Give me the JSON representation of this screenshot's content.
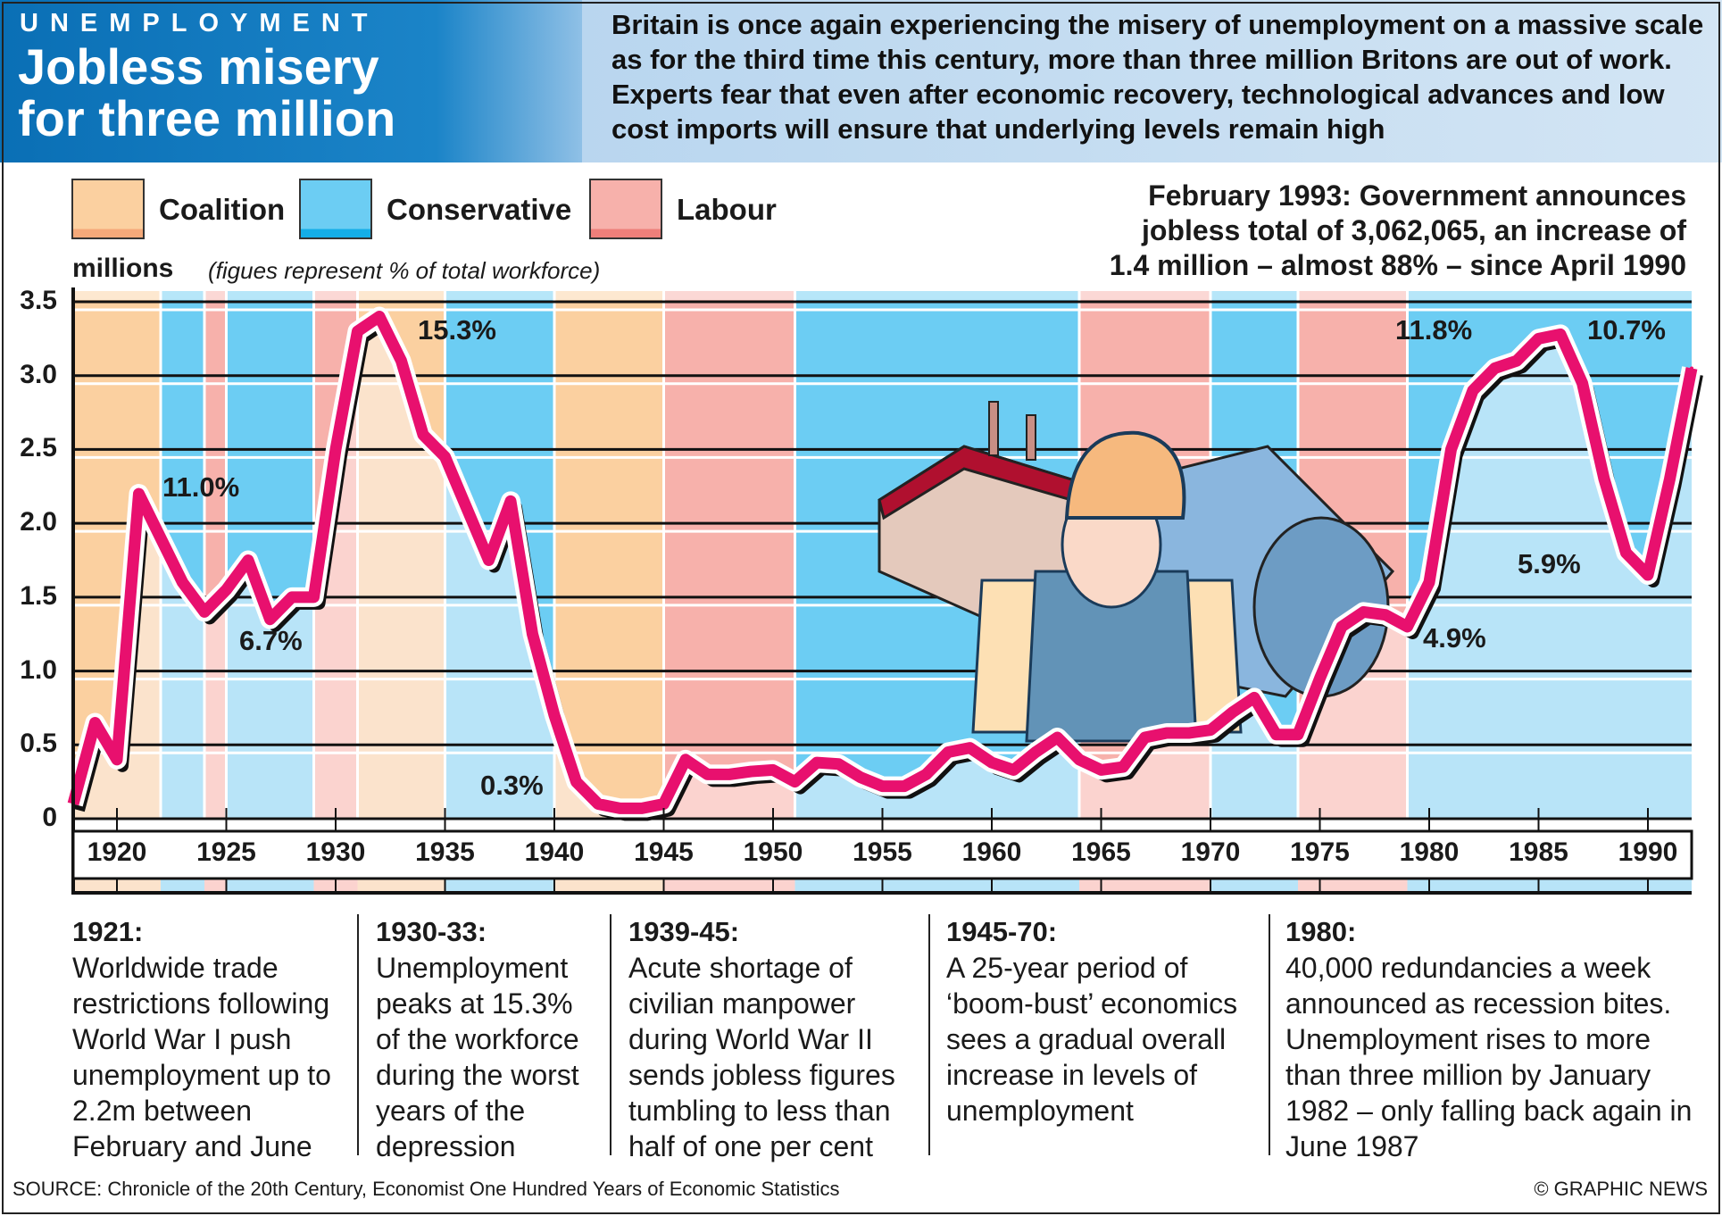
{
  "header": {
    "kicker": "UNEMPLOYMENT",
    "title_line1": "Jobless misery",
    "title_line2": "for three million",
    "intro": "Britain is once again experiencing the misery of unemployment on a massive scale as for the third time this century, more than three million Britons are out of work. Experts fear that even after economic recovery, technological advances and low cost imports will ensure that underlying levels remain high"
  },
  "legend": [
    {
      "label": "Coalition",
      "color": "#fbd0a0",
      "light": "#fbe3cc"
    },
    {
      "label": "Conservative",
      "color": "#6ccdf3",
      "light": "#b8e4f8"
    },
    {
      "label": "Labour",
      "color": "#f7b1ab",
      "light": "#fbd3cf"
    }
  ],
  "callout": {
    "line1": "February 1993: Government announces",
    "line2": "jobless total of 3,062,065, an increase of",
    "line3": "1.4 million – almost 88% – since April 1990"
  },
  "chart_data": {
    "type": "line",
    "ylabel": "millions",
    "ynote": "(figues represent % of total workforce)",
    "ylim": [
      0,
      3.5
    ],
    "yticks": [
      "0",
      "0.5",
      "1.0",
      "1.5",
      "2.0",
      "2.5",
      "3.0",
      "3.5"
    ],
    "xlim": [
      1918,
      1992
    ],
    "xticks": [
      "1920",
      "1925",
      "1930",
      "1935",
      "1940",
      "1945",
      "1950",
      "1955",
      "1960",
      "1965",
      "1970",
      "1975",
      "1980",
      "1985",
      "1990"
    ],
    "line_color": "#e8106e",
    "grid": true,
    "x": [
      1918,
      1919,
      1920,
      1921,
      1922,
      1923,
      1924,
      1925,
      1926,
      1927,
      1928,
      1929,
      1930,
      1931,
      1932,
      1933,
      1934,
      1935,
      1936,
      1937,
      1938,
      1939,
      1940,
      1941,
      1942,
      1943,
      1944,
      1945,
      1946,
      1947,
      1948,
      1949,
      1950,
      1951,
      1952,
      1953,
      1954,
      1955,
      1956,
      1957,
      1958,
      1959,
      1960,
      1961,
      1962,
      1963,
      1964,
      1965,
      1966,
      1967,
      1968,
      1969,
      1970,
      1971,
      1972,
      1973,
      1974,
      1975,
      1976,
      1977,
      1978,
      1979,
      1980,
      1981,
      1982,
      1983,
      1984,
      1985,
      1986,
      1987,
      1988,
      1989,
      1990,
      1991,
      1992
    ],
    "y": [
      0.1,
      0.65,
      0.4,
      2.2,
      1.9,
      1.6,
      1.4,
      1.55,
      1.75,
      1.35,
      1.5,
      1.5,
      2.5,
      3.3,
      3.4,
      3.1,
      2.6,
      2.45,
      2.1,
      1.75,
      2.15,
      1.25,
      0.7,
      0.25,
      0.1,
      0.07,
      0.07,
      0.1,
      0.4,
      0.3,
      0.3,
      0.32,
      0.33,
      0.25,
      0.38,
      0.37,
      0.28,
      0.22,
      0.22,
      0.3,
      0.45,
      0.48,
      0.38,
      0.33,
      0.45,
      0.55,
      0.4,
      0.33,
      0.35,
      0.55,
      0.58,
      0.58,
      0.6,
      0.72,
      0.82,
      0.57,
      0.57,
      0.95,
      1.3,
      1.4,
      1.38,
      1.3,
      1.6,
      2.5,
      2.9,
      3.05,
      3.1,
      3.25,
      3.28,
      2.95,
      2.3,
      1.8,
      1.65,
      2.3,
      3.05
    ],
    "periods": [
      {
        "party": "Coalition",
        "from": 1918,
        "to": 1922
      },
      {
        "party": "Conservative",
        "from": 1922,
        "to": 1924
      },
      {
        "party": "Labour",
        "from": 1924,
        "to": 1925
      },
      {
        "party": "Conservative",
        "from": 1925,
        "to": 1929
      },
      {
        "party": "Labour",
        "from": 1929,
        "to": 1931
      },
      {
        "party": "Coalition",
        "from": 1931,
        "to": 1935
      },
      {
        "party": "Conservative",
        "from": 1935,
        "to": 1940
      },
      {
        "party": "Coalition",
        "from": 1940,
        "to": 1945
      },
      {
        "party": "Labour",
        "from": 1945,
        "to": 1951
      },
      {
        "party": "Conservative",
        "from": 1951,
        "to": 1964
      },
      {
        "party": "Labour",
        "from": 1964,
        "to": 1970
      },
      {
        "party": "Conservative",
        "from": 1970,
        "to": 1974
      },
      {
        "party": "Labour",
        "from": 1974,
        "to": 1979
      },
      {
        "party": "Conservative",
        "from": 1979,
        "to": 1992.5
      }
    ],
    "annotations": [
      "11.0%",
      "6.7%",
      "15.3%",
      "0.3%",
      "11.8%",
      "4.9%",
      "5.9%",
      "10.7%"
    ]
  },
  "notes": [
    {
      "head": "1921:",
      "text": "Worldwide trade restrictions following World War I push unemployment up to 2.2m between February and June"
    },
    {
      "head": "1930-33:",
      "text": "Unemployment peaks at 15.3% of the workforce during the worst years of the depression"
    },
    {
      "head": "1939-45:",
      "text": "Acute shortage of civilian manpower during World War II sends jobless figures tumbling to less than half of one per cent"
    },
    {
      "head": "1945-70:",
      "text": " A 25-year period of ‘boom-bust’ economics sees a gradual overall increase in levels of unemployment"
    },
    {
      "head": "1980:",
      "text": "40,000 redundancies a week announced as recession bites. Unemployment rises to more than three million by January 1982 – only falling back again in June 1987"
    }
  ],
  "footer": {
    "source": "SOURCE: Chronicle of the 20th Century, Economist One Hundred Years of Economic Statistics",
    "credit": "© GRAPHIC NEWS"
  }
}
